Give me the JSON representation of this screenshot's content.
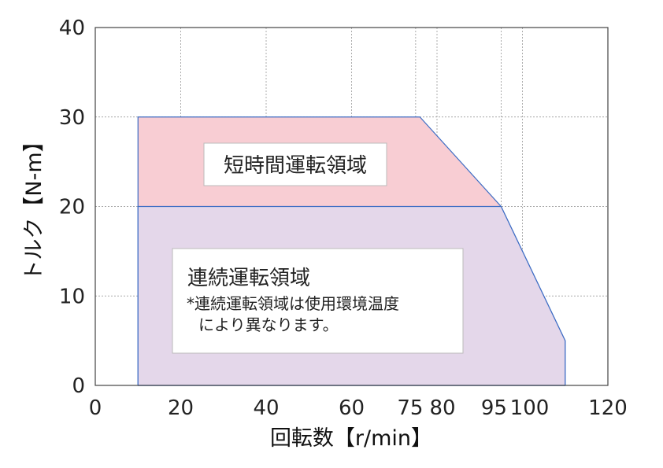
{
  "chart_data": {
    "type": "area",
    "xlabel": "回転数【r/min】",
    "ylabel": "トルク【N-m】",
    "xlim": [
      0,
      120
    ],
    "ylim": [
      0,
      40
    ],
    "x_ticks": [
      0,
      20,
      40,
      60,
      75,
      80,
      95,
      100,
      120
    ],
    "y_ticks": [
      0,
      10,
      20,
      30,
      40
    ],
    "x_tick_labels": [
      "0",
      "20",
      "40",
      "60",
      "75",
      "80",
      "95",
      "100",
      "120"
    ],
    "y_tick_labels": [
      "0",
      "10",
      "20",
      "30",
      "40"
    ],
    "grid": true,
    "series": [
      {
        "name": "短時間運転領域",
        "color": "#f8cdd3",
        "points": [
          [
            10,
            0
          ],
          [
            10,
            30
          ],
          [
            76,
            30
          ],
          [
            95,
            20
          ],
          [
            110,
            5
          ],
          [
            110,
            0
          ]
        ]
      },
      {
        "name": "連続運転領域",
        "color": "#e4d7ea",
        "points": [
          [
            10,
            0
          ],
          [
            10,
            20
          ],
          [
            95,
            20
          ],
          [
            110,
            5
          ],
          [
            110,
            0
          ]
        ]
      }
    ],
    "annotations": {
      "short_term_label": "短時間運転領域",
      "continuous_label": "連続運転領域",
      "note_line1": "*連続運転領域は使用環境温度",
      "note_line2": "により異なります。"
    },
    "colors": {
      "outline": "#3d6cc4",
      "grid": "#8a8a8a",
      "short_term_fill": "#f8cdd3",
      "continuous_fill": "#e4d7ea"
    }
  }
}
